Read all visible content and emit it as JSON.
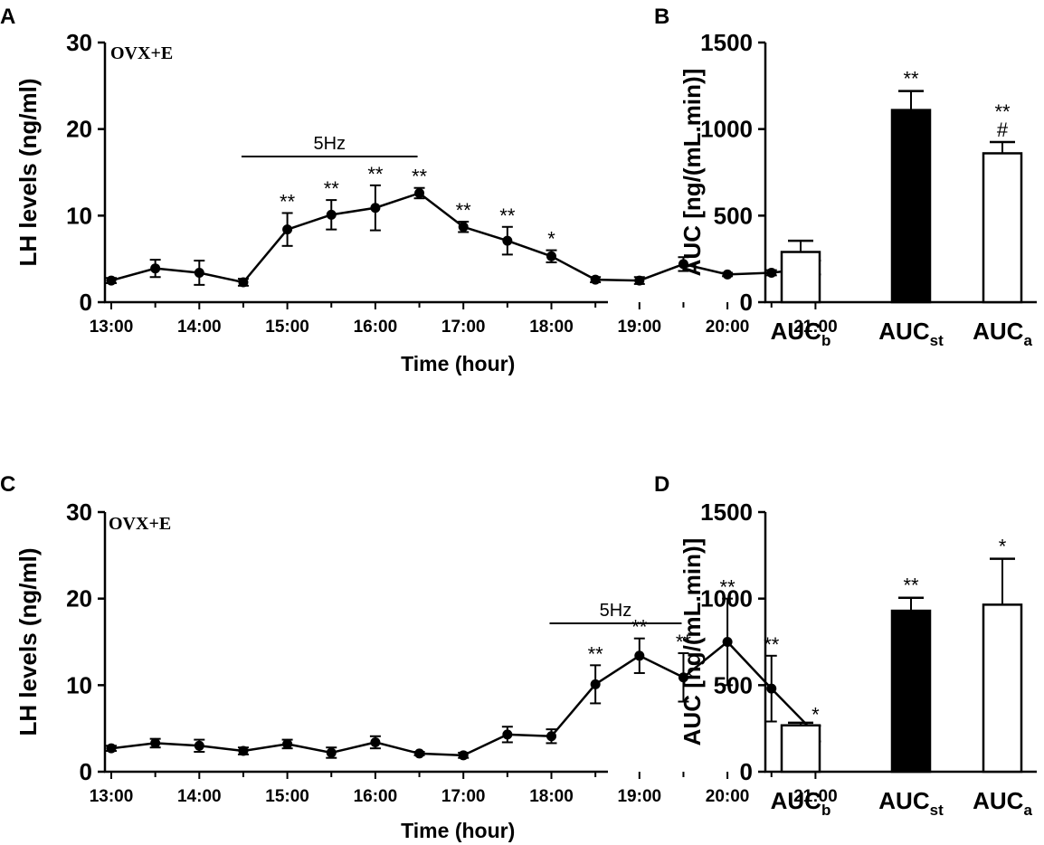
{
  "chart_data": [
    {
      "type": "line",
      "panel_letter": "A",
      "annotation": "OVX+E",
      "ylabel": "LH levels (ng/ml)",
      "xlabel": "Time (hour)",
      "ylim": [
        0,
        30
      ],
      "yticks": [
        "0",
        "10",
        "20",
        "30"
      ],
      "xticks": [
        "13:00",
        "14:00",
        "15:00",
        "16:00",
        "17:00",
        "18:00",
        "19:00",
        "20:00",
        "21:00"
      ],
      "series": [
        {
          "name": "LH",
          "x": [
            0,
            0.5,
            1,
            1.5,
            2,
            2.5,
            3,
            3.5,
            4,
            4.5,
            5,
            5.5,
            6,
            6.5,
            7,
            7.5,
            8
          ],
          "y": [
            2.5,
            3.9,
            3.4,
            2.3,
            8.4,
            10.1,
            10.9,
            12.6,
            8.7,
            7.1,
            5.3,
            2.6,
            2.5,
            4.4,
            3.2,
            3.4,
            4.0
          ],
          "err": [
            0.3,
            1.0,
            1.4,
            0.4,
            1.9,
            1.7,
            2.6,
            0.6,
            0.6,
            1.6,
            0.7,
            0.3,
            0.4,
            0.8,
            0.2,
            0.3,
            0.8
          ],
          "sig": [
            "",
            "",
            "",
            "",
            "**",
            "**",
            "**",
            "**",
            "**",
            "**",
            "*",
            "",
            "",
            "",
            "",
            "",
            ""
          ]
        }
      ],
      "stim_label": "5Hz",
      "stim_range": [
        1.5,
        3.5
      ],
      "dark_period": [
        6,
        8.2
      ]
    },
    {
      "type": "bar",
      "panel_letter": "B",
      "ylabel": "AUC [ng/(mL.min)]",
      "ylim": [
        0,
        1500
      ],
      "yticks": [
        "0",
        "500",
        "1000",
        "1500"
      ],
      "categories": [
        {
          "main": "AUC",
          "sub": "b"
        },
        {
          "main": "AUC",
          "sub": "st"
        },
        {
          "main": "AUC",
          "sub": "a"
        }
      ],
      "values": [
        290,
        1110,
        860
      ],
      "err": [
        65,
        110,
        65
      ],
      "fills": [
        "#ffffff",
        "#000000",
        "#ffffff"
      ],
      "sig": [
        "",
        "**",
        "**"
      ],
      "sig2": [
        "",
        "",
        "#"
      ]
    },
    {
      "type": "line",
      "panel_letter": "C",
      "annotation": "OVX+E",
      "ylabel": "LH levels (ng/ml)",
      "xlabel": "Time (hour)",
      "ylim": [
        0,
        30
      ],
      "yticks": [
        "0",
        "10",
        "20",
        "30"
      ],
      "xticks": [
        "13:00",
        "14:00",
        "15:00",
        "16:00",
        "17:00",
        "18:00",
        "19:00",
        "20:00",
        "21:00"
      ],
      "series": [
        {
          "name": "LH",
          "x": [
            0,
            0.5,
            1,
            1.5,
            2,
            2.5,
            3,
            3.5,
            4,
            4.5,
            5,
            5.5,
            6,
            6.5,
            7,
            7.5,
            8
          ],
          "y": [
            2.7,
            3.3,
            3.0,
            2.4,
            3.2,
            2.2,
            3.4,
            2.1,
            1.9,
            4.3,
            4.1,
            10.1,
            13.4,
            10.9,
            15.0,
            9.6,
            4.4
          ],
          "err": [
            0.3,
            0.5,
            0.7,
            0.4,
            0.5,
            0.6,
            0.7,
            0.2,
            0.3,
            0.9,
            0.8,
            2.2,
            2.0,
            2.8,
            5.0,
            3.8,
            0.9
          ],
          "sig": [
            "",
            "",
            "",
            "",
            "",
            "",
            "",
            "",
            "",
            "",
            "",
            "**",
            "**",
            "**",
            "**",
            "**",
            "*"
          ]
        }
      ],
      "stim_label": "5Hz",
      "stim_range": [
        5,
        6.5
      ],
      "dark_period": [
        6,
        8.2
      ]
    },
    {
      "type": "bar",
      "panel_letter": "D",
      "ylabel": "AUC [ng/(mL.min)]",
      "ylim": [
        0,
        1500
      ],
      "yticks": [
        "0",
        "500",
        "1000",
        "1500"
      ],
      "categories": [
        {
          "main": "AUC",
          "sub": "b"
        },
        {
          "main": "AUC",
          "sub": "st"
        },
        {
          "main": "AUC",
          "sub": "a"
        }
      ],
      "values": [
        268,
        930,
        965
      ],
      "err": [
        15,
        75,
        265
      ],
      "fills": [
        "#ffffff",
        "#000000",
        "#ffffff"
      ],
      "sig": [
        "",
        "**",
        "*"
      ],
      "sig2": [
        "",
        "",
        ""
      ]
    }
  ]
}
